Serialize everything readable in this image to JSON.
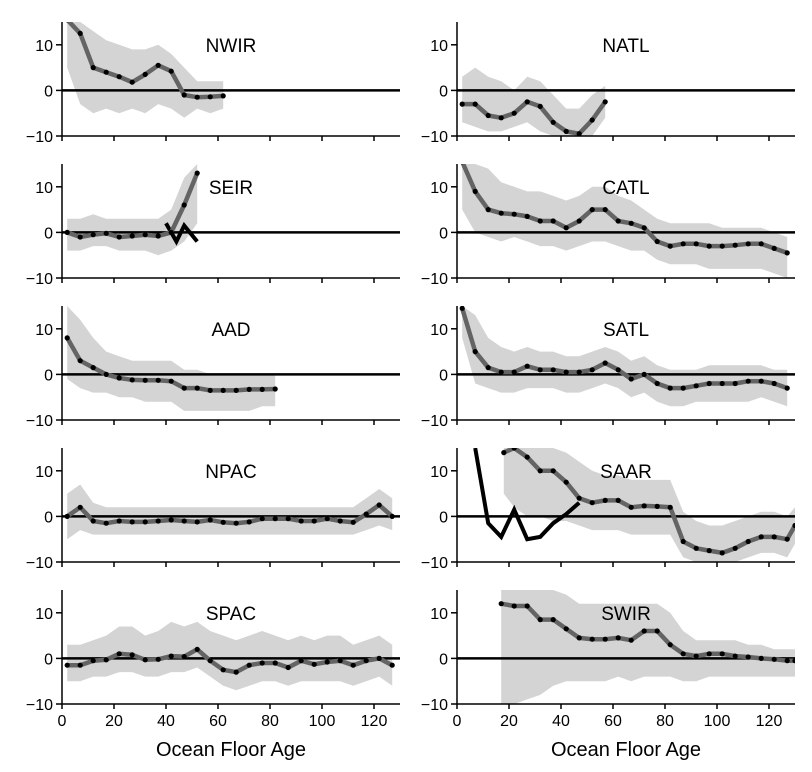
{
  "chart_data": {
    "type": "line",
    "xlabel": "Ocean Floor Age",
    "xlim": [
      0,
      130
    ],
    "ylim": [
      -10,
      15
    ],
    "x_ticks": [
      "0",
      "20",
      "40",
      "60",
      "80",
      "100",
      "120"
    ],
    "y_ticks": [
      "−10",
      "0",
      "10"
    ],
    "colors": {
      "mean_line": "#646464",
      "band": "#d4d4d4",
      "points": "#000000",
      "zero_line": "#000000",
      "alt_line": "#000000"
    },
    "panels": [
      {
        "name": "NWIR",
        "x": [
          2,
          7,
          12,
          17,
          22,
          27,
          32,
          37,
          42,
          47,
          52,
          57,
          62
        ],
        "y": [
          15.5,
          12.5,
          5,
          4,
          3,
          1.8,
          3.5,
          5.5,
          4.2,
          -1,
          -1.5,
          -1.4,
          -1.2
        ],
        "band_upper": [
          15,
          15,
          13,
          11,
          10,
          9,
          9,
          10,
          8,
          5,
          2,
          2,
          2
        ],
        "band_lower": [
          5,
          -3,
          -5,
          -4,
          -5,
          -4,
          -5,
          -3,
          -4,
          -6,
          -4,
          -5,
          -4
        ]
      },
      {
        "name": "NATL",
        "x": [
          2,
          7,
          12,
          17,
          22,
          27,
          32,
          37,
          42,
          47,
          52,
          57
        ],
        "y": [
          -3,
          -3,
          -5.5,
          -6,
          -5,
          -2.5,
          -3.5,
          -7,
          -9,
          -9.5,
          -6.5,
          -2.5
        ],
        "band_upper": [
          3,
          5,
          3,
          2,
          0,
          3,
          2,
          -1,
          -4,
          -4,
          -1,
          1
        ],
        "band_lower": [
          -7,
          -8,
          -9,
          -9,
          -8,
          -7,
          -9,
          -10,
          -10,
          -10,
          -10,
          -6
        ]
      },
      {
        "name": "SEIR",
        "x": [
          2,
          7,
          12,
          17,
          22,
          27,
          32,
          37,
          42,
          47,
          52
        ],
        "y": [
          0,
          -1,
          -0.5,
          -0.2,
          -1,
          -0.8,
          -0.5,
          -0.8,
          0,
          6,
          13
        ],
        "band_upper": [
          3,
          3,
          4,
          3,
          3,
          3,
          3,
          3,
          5,
          12,
          15
        ],
        "band_lower": [
          -4,
          -4,
          -3,
          -3,
          -4,
          -4,
          -4,
          -5,
          -4,
          -2,
          2
        ],
        "alt_x": [
          40,
          44,
          47,
          52
        ],
        "alt_y": [
          2,
          -2,
          1.5,
          -2
        ]
      },
      {
        "name": "CATL",
        "x": [
          2,
          7,
          12,
          17,
          22,
          27,
          32,
          37,
          42,
          47,
          52,
          57,
          62,
          67,
          72,
          77,
          82,
          87,
          92,
          97,
          102,
          107,
          112,
          117,
          122,
          127
        ],
        "y": [
          15.5,
          9,
          5,
          4.2,
          4,
          3.5,
          2.5,
          2.5,
          1,
          2.5,
          5,
          5,
          2.5,
          2,
          1,
          -2,
          -3,
          -2.5,
          -2.5,
          -3,
          -3,
          -2.8,
          -2.5,
          -2.5,
          -3.5,
          -4.5
        ],
        "band_upper": [
          15,
          15,
          14,
          11,
          10,
          9,
          9,
          8,
          7,
          8,
          10,
          10,
          8,
          7,
          5,
          3,
          2,
          2,
          2,
          2,
          1,
          1,
          1,
          1,
          0,
          -1
        ],
        "band_lower": [
          5,
          0,
          -1,
          -2,
          -1,
          -2,
          -3,
          -3,
          -4,
          -3,
          -2,
          -2,
          -3,
          -4,
          -4,
          -6,
          -7,
          -7,
          -7,
          -8,
          -8,
          -8,
          -8,
          -8,
          -9,
          -10
        ]
      },
      {
        "name": "AAD",
        "x": [
          2,
          7,
          12,
          17,
          22,
          27,
          32,
          37,
          42,
          47,
          52,
          57,
          62,
          67,
          72,
          77,
          82
        ],
        "y": [
          8,
          3,
          1.5,
          0,
          -0.8,
          -1.2,
          -1.3,
          -1.3,
          -1.5,
          -3,
          -3,
          -3.5,
          -3.5,
          -3.5,
          -3.3,
          -3.3,
          -3.2
        ],
        "band_upper": [
          15,
          12,
          8,
          5,
          4,
          3,
          3,
          3,
          3,
          1,
          1,
          0,
          0,
          0,
          0,
          0,
          0
        ],
        "band_lower": [
          -1,
          -3,
          -4,
          -4,
          -5,
          -5,
          -6,
          -6,
          -6,
          -8,
          -8,
          -8,
          -8,
          -8,
          -8,
          -7,
          -7
        ]
      },
      {
        "name": "SATL",
        "x": [
          2,
          7,
          12,
          17,
          22,
          27,
          32,
          37,
          42,
          47,
          52,
          57,
          62,
          67,
          72,
          77,
          82,
          87,
          92,
          97,
          102,
          107,
          112,
          117,
          122,
          127
        ],
        "y": [
          14.5,
          5,
          1.5,
          0.5,
          0.5,
          1.8,
          1,
          1,
          0.5,
          0.5,
          1,
          2.5,
          1,
          -1,
          0,
          -2,
          -3,
          -3,
          -2.5,
          -2,
          -2,
          -2,
          -1.5,
          -1.5,
          -2,
          -3
        ],
        "band_upper": [
          15,
          13,
          8,
          6,
          5,
          6,
          5,
          5,
          4,
          4,
          5,
          6,
          5,
          3,
          4,
          2,
          1,
          1,
          1,
          2,
          2,
          2,
          2,
          2,
          1,
          1
        ],
        "band_lower": [
          8,
          -2,
          -3,
          -4,
          -4,
          -3,
          -3,
          -3,
          -4,
          -4,
          -3,
          -2,
          -3,
          -5,
          -4,
          -6,
          -7,
          -7,
          -6,
          -6,
          -6,
          -6,
          -6,
          -5,
          -6,
          -7
        ]
      },
      {
        "name": "NPAC",
        "x": [
          2,
          7,
          12,
          17,
          22,
          27,
          32,
          37,
          42,
          47,
          52,
          57,
          62,
          67,
          72,
          77,
          82,
          87,
          92,
          97,
          102,
          107,
          112,
          117,
          122,
          127
        ],
        "y": [
          0,
          2,
          -1,
          -1.5,
          -1,
          -1.2,
          -1.2,
          -1,
          -0.8,
          -1,
          -1.2,
          -0.8,
          -1.3,
          -1.5,
          -1.2,
          -0.5,
          -0.5,
          -0.5,
          -1,
          -1,
          -0.5,
          -1,
          -1.3,
          0.5,
          2.5,
          0
        ],
        "band_upper": [
          5,
          7,
          3,
          2,
          2,
          2,
          2,
          2,
          2,
          2,
          2,
          2,
          2,
          2,
          2,
          2,
          2,
          2,
          2,
          2,
          2,
          2,
          2,
          4,
          6,
          4
        ],
        "band_lower": [
          -5,
          -3,
          -4,
          -4,
          -4,
          -4,
          -4,
          -4,
          -4,
          -4,
          -4,
          -4,
          -4,
          -4,
          -4,
          -4,
          -4,
          -4,
          -4,
          -4,
          -4,
          -4,
          -4,
          -3,
          -2,
          -3
        ]
      },
      {
        "name": "SAAR",
        "x": [
          18,
          22,
          27,
          32,
          37,
          42,
          47,
          52,
          57,
          62,
          67,
          72,
          77,
          82,
          87,
          92,
          97,
          102,
          107,
          112,
          117,
          122,
          127,
          130
        ],
        "y": [
          14,
          15,
          13,
          10,
          10,
          7.5,
          4,
          3,
          3.5,
          3.5,
          2,
          2.3,
          2.2,
          2,
          -5.5,
          -7,
          -7.5,
          -8,
          -7,
          -5.5,
          -4.5,
          -4.5,
          -5,
          -2
        ],
        "band_upper": [
          15,
          15,
          15,
          15,
          15,
          14,
          12,
          10,
          9,
          9,
          8,
          8,
          8,
          8,
          1,
          -1,
          -2,
          -2,
          -1,
          0,
          1,
          1,
          0,
          2
        ],
        "band_lower": [
          5,
          2,
          0,
          0,
          -1,
          -1,
          -2,
          -3,
          -3,
          -3,
          -4,
          -4,
          -4,
          -4,
          -9,
          -10,
          -10,
          -10,
          -10,
          -9,
          -8,
          -8,
          -9,
          -6
        ],
        "alt_x": [
          7,
          12,
          17,
          22,
          27,
          32,
          37,
          42,
          47
        ],
        "alt_y": [
          15,
          -1.5,
          -4.5,
          1.5,
          -5,
          -4.5,
          -1.5,
          0.5,
          3
        ]
      },
      {
        "name": "SPAC",
        "x": [
          2,
          7,
          12,
          17,
          22,
          27,
          32,
          37,
          42,
          47,
          52,
          57,
          62,
          67,
          72,
          77,
          82,
          87,
          92,
          97,
          102,
          107,
          112,
          117,
          122,
          127
        ],
        "y": [
          -1.5,
          -1.5,
          -0.5,
          -0.3,
          1,
          0.8,
          -0.3,
          -0.2,
          0.5,
          0.4,
          2,
          -0.5,
          -2.5,
          -3,
          -1.5,
          -1,
          -1,
          -2,
          -0.5,
          -1.3,
          -0.8,
          -0.5,
          -1.5,
          -0.5,
          0,
          -1.5
        ],
        "band_upper": [
          3,
          3,
          4,
          5,
          7,
          7,
          5,
          6,
          8,
          7,
          8,
          6,
          5,
          4,
          5,
          6,
          5,
          4,
          5,
          4,
          5,
          5,
          3,
          4,
          5,
          3
        ],
        "band_lower": [
          -5,
          -5,
          -4,
          -4,
          -3,
          -3,
          -4,
          -4,
          -3,
          -3,
          -2,
          -4,
          -6,
          -7,
          -6,
          -5,
          -5,
          -6,
          -5,
          -5,
          -5,
          -5,
          -6,
          -5,
          -4,
          -6
        ]
      },
      {
        "name": "SWIR",
        "x": [
          17,
          22,
          27,
          32,
          37,
          42,
          47,
          52,
          57,
          62,
          67,
          72,
          77,
          82,
          87,
          92,
          97,
          102,
          107,
          112,
          117,
          122,
          127,
          130
        ],
        "y": [
          12,
          11.5,
          11.5,
          8.5,
          8.5,
          6.5,
          4.5,
          4.2,
          4.2,
          4.5,
          4,
          6,
          6,
          3,
          1,
          0.5,
          1,
          1,
          0.5,
          0.3,
          0,
          -0.2,
          -0.5,
          -0.5
        ],
        "band_upper": [
          15,
          15,
          15,
          15,
          15,
          14,
          12,
          12,
          12,
          12,
          12,
          12,
          12,
          10,
          6,
          4,
          4,
          4,
          4,
          3,
          3,
          2,
          2,
          2
        ],
        "band_lower": [
          -10,
          -10,
          -9,
          -8,
          -6,
          -5,
          -5,
          -5,
          -5,
          -4,
          -5,
          -4,
          -4,
          -4,
          -5,
          -5,
          -4,
          -4,
          -4,
          -4,
          -4,
          -4,
          -4,
          -4
        ]
      }
    ]
  }
}
